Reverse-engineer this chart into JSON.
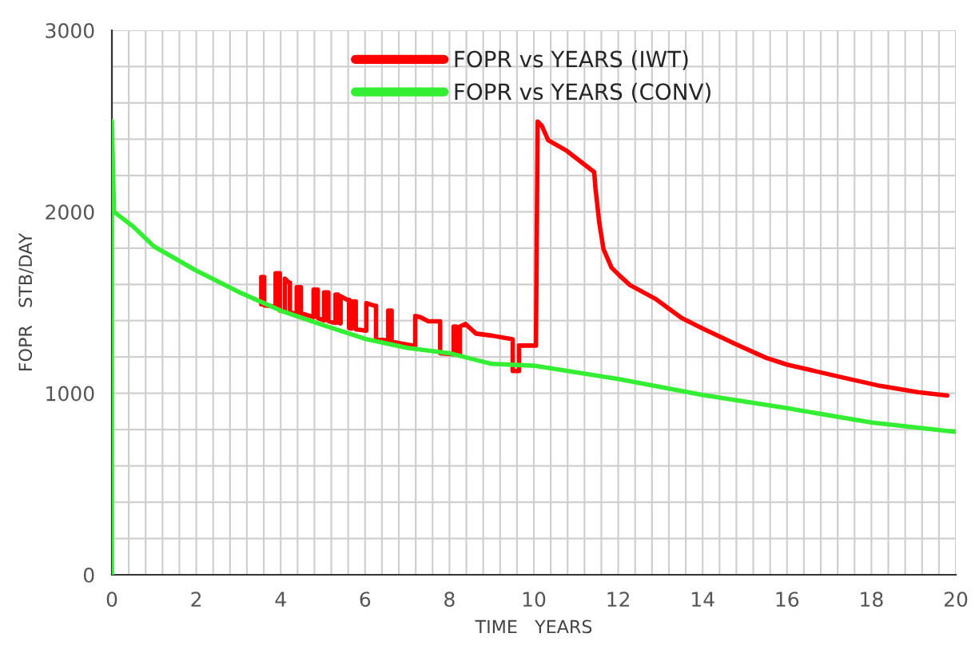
{
  "chart_data": {
    "type": "line",
    "xlabel": "TIME   YEARS",
    "ylabel": "FOPR   STB/DAY",
    "xlim": [
      0,
      20
    ],
    "ylim": [
      0,
      3000
    ],
    "xticks": [
      0,
      {
        "value": 0.4,
        "label": null
      },
      {
        "value": 0.8,
        "label": null
      },
      {
        "value": 1.2,
        "label": null
      },
      {
        "value": 1.6,
        "label": null
      },
      2,
      {
        "value": 2.4,
        "label": null
      },
      {
        "value": 2.8,
        "label": null
      },
      {
        "value": 3.2,
        "label": null
      },
      {
        "value": 3.6,
        "label": null
      },
      4,
      {
        "value": 4.4,
        "label": null
      },
      {
        "value": 4.8,
        "label": null
      },
      {
        "value": 5.2,
        "label": null
      },
      {
        "value": 5.6,
        "label": null
      },
      6,
      {
        "value": 6.4,
        "label": null
      },
      {
        "value": 6.8,
        "label": null
      },
      {
        "value": 7.2,
        "label": null
      },
      {
        "value": 7.6,
        "label": null
      },
      8,
      {
        "value": 8.4,
        "label": null
      },
      {
        "value": 8.8,
        "label": null
      },
      {
        "value": 9.2,
        "label": null
      },
      {
        "value": 9.6,
        "label": null
      },
      10,
      {
        "value": 10.4,
        "label": null
      },
      {
        "value": 10.8,
        "label": null
      },
      {
        "value": 11.2,
        "label": null
      },
      {
        "value": 11.6,
        "label": null
      },
      12,
      {
        "value": 12.4,
        "label": null
      },
      {
        "value": 12.8,
        "label": null
      },
      {
        "value": 13.2,
        "label": null
      },
      {
        "value": 13.6,
        "label": null
      },
      14,
      {
        "value": 14.4,
        "label": null
      },
      {
        "value": 14.8,
        "label": null
      },
      {
        "value": 15.2,
        "label": null
      },
      {
        "value": 15.6,
        "label": null
      },
      16,
      {
        "value": 16.4,
        "label": null
      },
      {
        "value": 16.8,
        "label": null
      },
      {
        "value": 17.2,
        "label": null
      },
      {
        "value": 17.6,
        "label": null
      },
      18,
      {
        "value": 18.4,
        "label": null
      },
      {
        "value": 18.8,
        "label": null
      },
      {
        "value": 19.2,
        "label": null
      },
      {
        "value": 19.6,
        "label": null
      },
      20
    ],
    "yticks": [
      0,
      {
        "value": 200,
        "label": null
      },
      {
        "value": 400,
        "label": null
      },
      {
        "value": 600,
        "label": null
      },
      {
        "value": 800,
        "label": null
      },
      1000,
      {
        "value": 1200,
        "label": null
      },
      {
        "value": 1400,
        "label": null
      },
      {
        "value": 1600,
        "label": null
      },
      {
        "value": 1800,
        "label": null
      },
      2000,
      {
        "value": 2200,
        "label": null
      },
      {
        "value": 2400,
        "label": null
      },
      {
        "value": 2600,
        "label": null
      },
      {
        "value": 2800,
        "label": null
      },
      3000
    ],
    "grid": true,
    "legend": "top",
    "line_style": "solid",
    "marker": "none",
    "series": [
      {
        "name": "FOPR vs YEARS (IWT)",
        "color": "#ff0000",
        "x": [
          3.54,
          3.54,
          3.61,
          3.61,
          3.88,
          3.88,
          3.98,
          3.98,
          4.1,
          4.1,
          4.2,
          4.22,
          4.22,
          4.38,
          4.38,
          4.48,
          4.48,
          4.78,
          4.78,
          4.88,
          4.88,
          5.03,
          5.03,
          5.13,
          5.13,
          5.3,
          5.3,
          5.36,
          5.36,
          5.42,
          5.42,
          5.58,
          5.62,
          5.62,
          5.68,
          5.68,
          5.78,
          5.78,
          6.03,
          6.03,
          6.23,
          6.26,
          6.26,
          6.55,
          6.55,
          6.63,
          6.63,
          7.19,
          7.19,
          7.31,
          7.5,
          7.78,
          7.78,
          8.1,
          8.1,
          8.16,
          8.16,
          8.25,
          8.25,
          8.38,
          8.63,
          9.0,
          9.5,
          9.5,
          9.65,
          9.65,
          10.05,
          10.09,
          10.19,
          10.34,
          10.78,
          11.43,
          11.46,
          11.55,
          11.65,
          11.84,
          12.03,
          12.28,
          12.9,
          13.5,
          14.0,
          14.8,
          15.5,
          16.0,
          17.3,
          18.2,
          19.1,
          19.8
        ],
        "values": [
          1490,
          1641,
          1641,
          1485,
          1478,
          1662,
          1662,
          1456,
          1452,
          1632,
          1610,
          1610,
          1445,
          1438,
          1585,
          1585,
          1441,
          1420,
          1571,
          1571,
          1415,
          1402,
          1556,
          1556,
          1397,
          1388,
          1544,
          1544,
          1390,
          1385,
          1535,
          1515,
          1515,
          1360,
          1356,
          1506,
          1506,
          1353,
          1345,
          1497,
          1482,
          1482,
          1300,
          1290,
          1456,
          1456,
          1285,
          1260,
          1426,
          1420,
          1397,
          1397,
          1221,
          1215,
          1368,
          1368,
          1215,
          1215,
          1368,
          1382,
          1329,
          1318,
          1298,
          1123,
          1123,
          1263,
          1263,
          2497,
          2474,
          2395,
          2336,
          2219,
          2132,
          1942,
          1795,
          1693,
          1649,
          1596,
          1518,
          1415,
          1357,
          1269,
          1196,
          1158,
          1088,
          1041,
          1006,
          988
        ]
      },
      {
        "name": "FOPR vs YEARS (CONV)",
        "color": "#33ee33",
        "x": [
          0,
          0,
          0.05,
          0.5,
          1,
          2,
          3,
          4,
          5,
          6,
          7,
          8,
          9,
          10,
          12,
          14,
          16,
          18,
          20
        ],
        "values": [
          0,
          2500,
          2000,
          1920,
          1809,
          1676,
          1559,
          1456,
          1376,
          1300,
          1250,
          1221,
          1162,
          1152,
          1079,
          991,
          918,
          839,
          787
        ]
      }
    ]
  }
}
